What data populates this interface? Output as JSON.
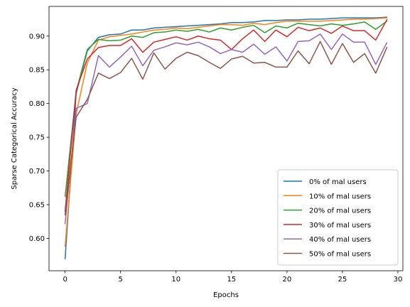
{
  "chart_data": {
    "type": "line",
    "xlabel": "Epochs",
    "ylabel": "Sparse Categorical Accuracy",
    "xlim": [
      -1.45,
      30.45
    ],
    "ylim": [
      0.552,
      0.944
    ],
    "xticks": [
      0,
      5,
      10,
      15,
      20,
      25,
      30
    ],
    "yticks": [
      0.6,
      0.65,
      0.7,
      0.75,
      0.8,
      0.85,
      0.9
    ],
    "ytick_labels": [
      "0.60",
      "0.65",
      "0.70",
      "0.75",
      "0.80",
      "0.85",
      "0.90"
    ],
    "grid": false,
    "legend_position": "lower-right",
    "x": [
      0,
      1,
      2,
      3,
      4,
      5,
      6,
      7,
      8,
      9,
      10,
      11,
      12,
      13,
      14,
      15,
      16,
      17,
      18,
      19,
      20,
      21,
      22,
      23,
      24,
      25,
      26,
      27,
      28,
      29
    ],
    "series": [
      {
        "name": "0% of mal users",
        "color": "#1f77b4",
        "values": [
          0.57,
          0.815,
          0.878,
          0.898,
          0.902,
          0.903,
          0.909,
          0.909,
          0.912,
          0.913,
          0.914,
          0.915,
          0.916,
          0.917,
          0.918,
          0.92,
          0.92,
          0.921,
          0.923,
          0.923,
          0.924,
          0.924,
          0.925,
          0.925,
          0.926,
          0.927,
          0.927,
          0.927,
          0.927,
          0.928
        ]
      },
      {
        "name": "10% of mal users",
        "color": "#ff7f0e",
        "values": [
          0.588,
          0.785,
          0.86,
          0.894,
          0.899,
          0.901,
          0.903,
          0.906,
          0.909,
          0.91,
          0.912,
          0.911,
          0.913,
          0.915,
          0.917,
          0.917,
          0.916,
          0.919,
          0.917,
          0.92,
          0.922,
          0.922,
          0.922,
          0.922,
          0.923,
          0.924,
          0.925,
          0.925,
          0.926,
          0.927
        ]
      },
      {
        "name": "20% of mal users",
        "color": "#2ca02c",
        "values": [
          0.662,
          0.818,
          0.88,
          0.895,
          0.893,
          0.894,
          0.9,
          0.898,
          0.905,
          0.906,
          0.909,
          0.907,
          0.91,
          0.906,
          0.912,
          0.909,
          0.913,
          0.916,
          0.905,
          0.915,
          0.912,
          0.919,
          0.917,
          0.915,
          0.918,
          0.916,
          0.918,
          0.921,
          0.91,
          0.922
        ]
      },
      {
        "name": "30% of mal users",
        "color": "#d62728",
        "values": [
          0.64,
          0.82,
          0.866,
          0.883,
          0.886,
          0.886,
          0.896,
          0.876,
          0.891,
          0.895,
          0.899,
          0.894,
          0.9,
          0.896,
          0.894,
          0.88,
          0.896,
          0.909,
          0.892,
          0.909,
          0.899,
          0.913,
          0.908,
          0.912,
          0.904,
          0.915,
          0.908,
          0.908,
          0.894,
          0.924
        ]
      },
      {
        "name": "40% of mal users",
        "color": "#9467bd",
        "values": [
          0.622,
          0.793,
          0.8,
          0.871,
          0.854,
          0.869,
          0.885,
          0.856,
          0.879,
          0.884,
          0.89,
          0.887,
          0.891,
          0.884,
          0.874,
          0.88,
          0.876,
          0.888,
          0.873,
          0.884,
          0.863,
          0.892,
          0.893,
          0.903,
          0.88,
          0.903,
          0.891,
          0.891,
          0.858,
          0.89
        ]
      },
      {
        "name": "50% of mal users",
        "color": "#8c564b",
        "values": [
          0.635,
          0.78,
          0.806,
          0.845,
          0.837,
          0.846,
          0.867,
          0.836,
          0.875,
          0.851,
          0.867,
          0.876,
          0.871,
          0.861,
          0.852,
          0.866,
          0.87,
          0.86,
          0.861,
          0.854,
          0.854,
          0.878,
          0.859,
          0.892,
          0.858,
          0.889,
          0.861,
          0.874,
          0.845,
          0.883
        ]
      }
    ]
  }
}
